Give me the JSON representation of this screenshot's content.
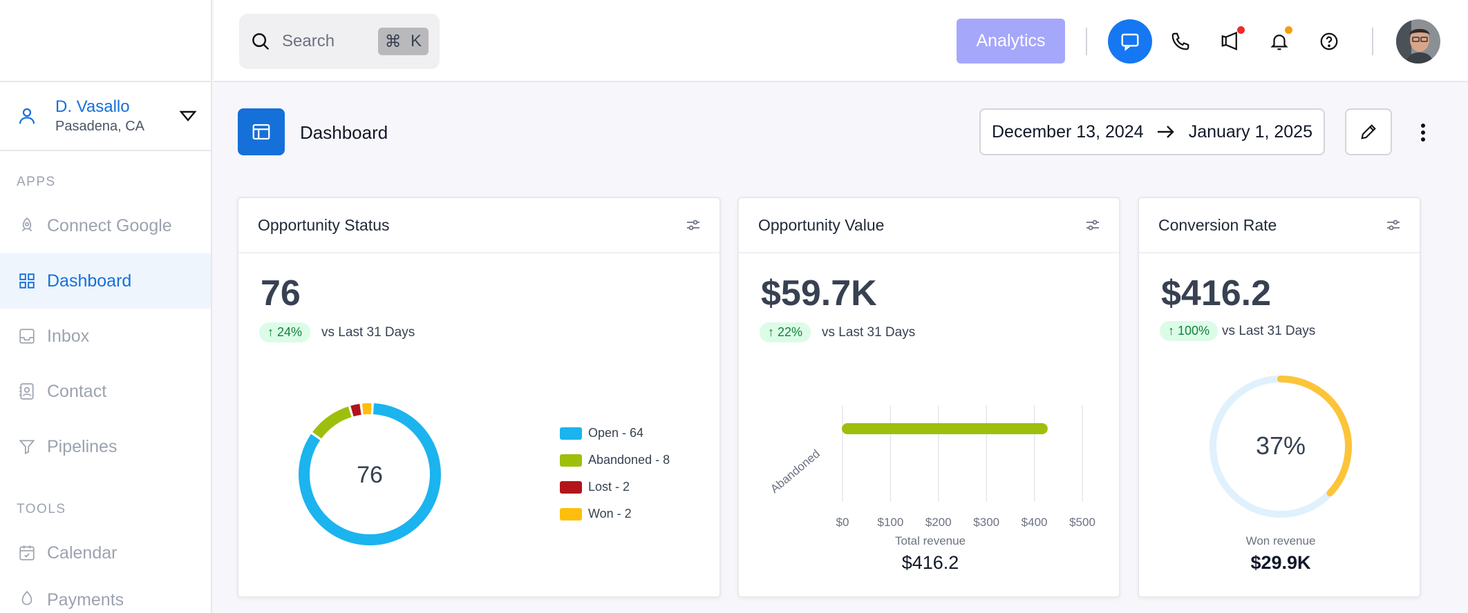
{
  "sidebar": {
    "user": {
      "name": "D. Vasallo",
      "location": "Pasadena, CA"
    },
    "apps_label": "APPS",
    "tools_label": "TOOLS",
    "items": [
      {
        "label": "Connect Google",
        "icon": "rocket-icon"
      },
      {
        "label": "Dashboard",
        "icon": "grid-icon",
        "active": true
      },
      {
        "label": "Inbox",
        "icon": "inbox-icon"
      },
      {
        "label": "Contact",
        "icon": "contact-icon"
      },
      {
        "label": "Pipelines",
        "icon": "filter-icon"
      }
    ],
    "tools": [
      {
        "label": "Calendar",
        "icon": "calendar-icon"
      },
      {
        "label": "Payments",
        "icon": "payments-icon"
      }
    ]
  },
  "topbar": {
    "search_placeholder": "Search",
    "shortcut_cmd": "⌘",
    "shortcut_key": "K",
    "analytics_label": "Analytics"
  },
  "page": {
    "title": "Dashboard",
    "date_start": "December 13, 2024",
    "date_end": "January 1, 2025"
  },
  "colors": {
    "accent": "#1570d9",
    "open": "#1bb4ef",
    "abandoned": "#9dbf0c",
    "lost": "#b3131b",
    "won": "#ffbe0b",
    "gauge_track": "#dff1fd",
    "gauge_fill": "#fcc439"
  },
  "cards": {
    "status": {
      "title": "Opportunity Status",
      "value": "76",
      "delta": "↑ 24%",
      "vs": "vs Last 31 Days",
      "center": "76",
      "legend": [
        "Open - 64",
        "Abandoned - 8",
        "Lost - 2",
        "Won - 2"
      ]
    },
    "value": {
      "title": "Opportunity Value",
      "value": "$59.7K",
      "delta": "↑ 22%",
      "vs": "vs Last 31 Days",
      "caption": "Total revenue",
      "total": "$416.2"
    },
    "conversion": {
      "title": "Conversion Rate",
      "value": "$416.2",
      "delta": "↑ 100%",
      "vs": "vs Last 31 Days",
      "center": "37%",
      "caption": "Won revenue",
      "total": "$29.9K"
    }
  },
  "chart_data": [
    {
      "type": "pie",
      "categories": [
        "Open",
        "Abandoned",
        "Lost",
        "Won"
      ],
      "values": [
        64,
        8,
        2,
        2
      ],
      "donut": true,
      "legend": "right"
    },
    {
      "type": "bar",
      "orientation": "horizontal",
      "categories": [
        "Abandoned"
      ],
      "values": [
        416.2
      ],
      "xticks": [
        "$0",
        "$100",
        "$200",
        "$300",
        "$400",
        "$500"
      ],
      "xlim": [
        0,
        500
      ],
      "grid": true
    },
    {
      "type": "pie",
      "donut": true,
      "values": [
        37,
        63
      ]
    }
  ]
}
